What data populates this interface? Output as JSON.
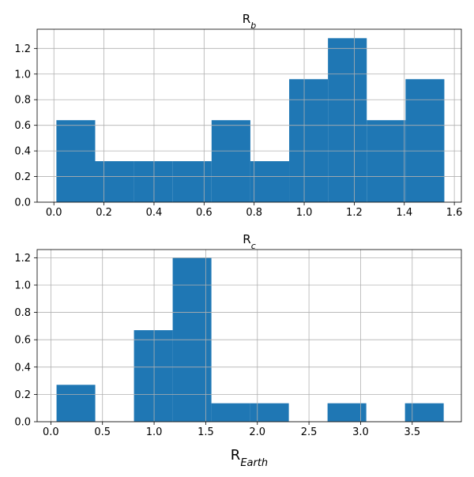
{
  "chart_data": [
    {
      "type": "histogram",
      "title": {
        "base": "R",
        "sub": "b"
      },
      "xlabel": {
        "base": "",
        "sub": ""
      },
      "ylabel": "",
      "xlim": [
        -0.067,
        1.628
      ],
      "ylim": [
        0,
        1.35
      ],
      "xticks": [
        0.0,
        0.2,
        0.4,
        0.6,
        0.8,
        1.0,
        1.2,
        1.4,
        1.6
      ],
      "yticks": [
        0.0,
        0.2,
        0.4,
        0.6,
        0.8,
        1.0,
        1.2
      ],
      "grid": true,
      "color": "#1f77b4",
      "bins": [
        {
          "x0": 0.01,
          "x1": 0.165,
          "y": 0.64
        },
        {
          "x0": 0.165,
          "x1": 0.32,
          "y": 0.32
        },
        {
          "x0": 0.32,
          "x1": 0.475,
          "y": 0.32
        },
        {
          "x0": 0.475,
          "x1": 0.63,
          "y": 0.32
        },
        {
          "x0": 0.63,
          "x1": 0.785,
          "y": 0.64
        },
        {
          "x0": 0.785,
          "x1": 0.94,
          "y": 0.32
        },
        {
          "x0": 0.94,
          "x1": 1.095,
          "y": 0.96
        },
        {
          "x0": 1.095,
          "x1": 1.25,
          "y": 1.28
        },
        {
          "x0": 1.25,
          "x1": 1.405,
          "y": 0.64
        },
        {
          "x0": 1.405,
          "x1": 1.56,
          "y": 0.96
        }
      ]
    },
    {
      "type": "histogram",
      "title": {
        "base": "R",
        "sub": "c"
      },
      "xlabel": {
        "base": "R",
        "sub": "Earth"
      },
      "ylabel": "",
      "xlim": [
        -0.133,
        3.976
      ],
      "ylim": [
        0,
        1.26
      ],
      "xticks": [
        0.0,
        0.5,
        1.0,
        1.5,
        2.0,
        2.5,
        3.0,
        3.5
      ],
      "yticks": [
        0.0,
        0.2,
        0.4,
        0.6,
        0.8,
        1.0,
        1.2
      ],
      "grid": true,
      "color": "#1f77b4",
      "bins": [
        {
          "x0": 0.055,
          "x1": 0.43,
          "y": 0.27
        },
        {
          "x0": 0.43,
          "x1": 0.805,
          "y": 0.0
        },
        {
          "x0": 0.805,
          "x1": 1.18,
          "y": 0.67
        },
        {
          "x0": 1.18,
          "x1": 1.555,
          "y": 1.2
        },
        {
          "x0": 1.555,
          "x1": 1.93,
          "y": 0.135
        },
        {
          "x0": 1.93,
          "x1": 2.305,
          "y": 0.135
        },
        {
          "x0": 2.305,
          "x1": 2.68,
          "y": 0.0
        },
        {
          "x0": 2.68,
          "x1": 3.055,
          "y": 0.135
        },
        {
          "x0": 3.055,
          "x1": 3.43,
          "y": 0.0
        },
        {
          "x0": 3.43,
          "x1": 3.805,
          "y": 0.135
        }
      ]
    }
  ]
}
